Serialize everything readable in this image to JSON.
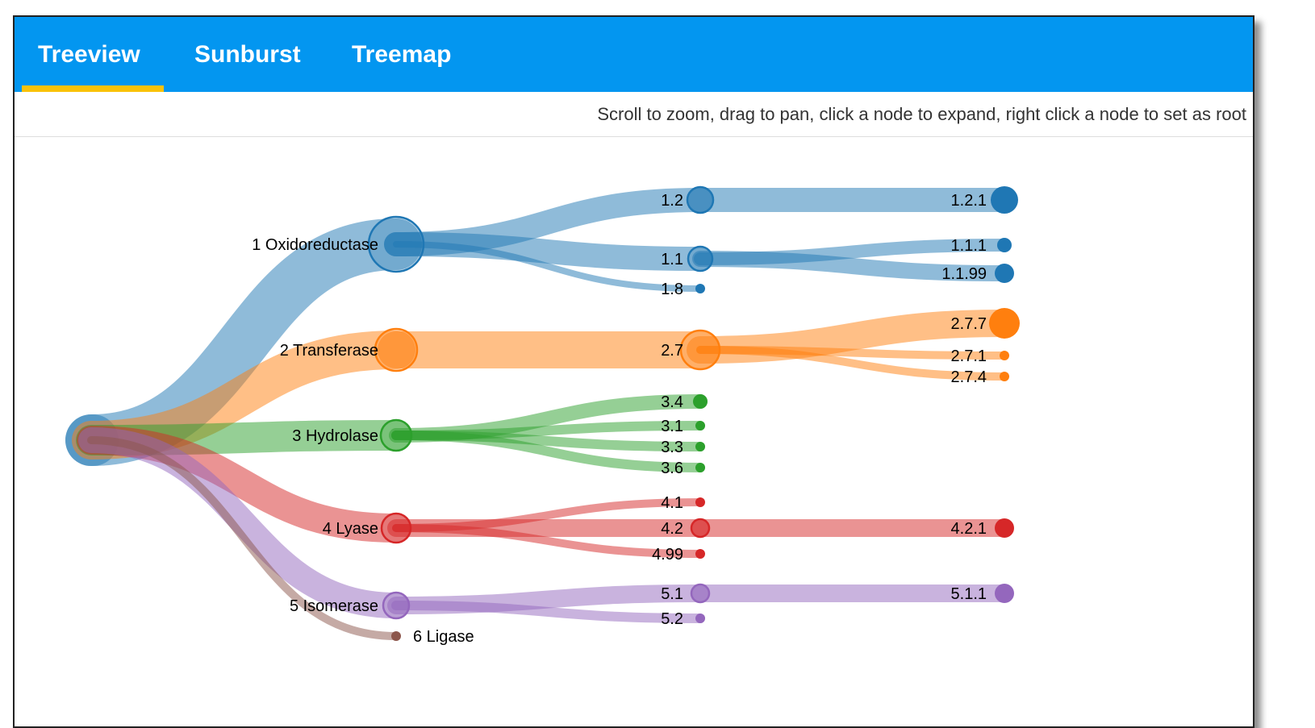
{
  "tabs": [
    {
      "label": "Treeview",
      "active": true
    },
    {
      "label": "Sunburst",
      "active": false
    },
    {
      "label": "Treemap",
      "active": false
    }
  ],
  "hint": "Scroll to zoom, drag to pan, click a node to expand, right click a node to set as root",
  "colors": {
    "tabbar": "#0396f0",
    "indicator": "#f9c20a",
    "blue": "#1f77b4",
    "orange": "#ff7f0e",
    "green": "#2ca02c",
    "red": "#d62728",
    "purple": "#9467bd",
    "brown": "#8c564b"
  },
  "tree": {
    "categories": [
      {
        "label": "1 Oxidoreductase",
        "color": "blue",
        "children": [
          "1.2",
          "1.1",
          "1.8"
        ]
      },
      {
        "label": "2 Transferase",
        "color": "orange",
        "children": [
          "2.7"
        ]
      },
      {
        "label": "3 Hydrolase",
        "color": "green",
        "children": [
          "3.4",
          "3.1",
          "3.3",
          "3.6"
        ]
      },
      {
        "label": "4 Lyase",
        "color": "red",
        "children": [
          "4.1",
          "4.2",
          "4.99"
        ]
      },
      {
        "label": "5 Isomerase",
        "color": "purple",
        "children": [
          "5.1",
          "5.2"
        ]
      },
      {
        "label": "6 Ligase",
        "color": "brown",
        "children": []
      }
    ],
    "subclasses": [
      {
        "label": "1.2",
        "color": "blue",
        "children": [
          "1.2.1"
        ]
      },
      {
        "label": "1.1",
        "color": "blue",
        "children": [
          "1.1.1",
          "1.1.99"
        ]
      },
      {
        "label": "1.8",
        "color": "blue",
        "children": []
      },
      {
        "label": "2.7",
        "color": "orange",
        "children": [
          "2.7.7",
          "2.7.1",
          "2.7.4"
        ]
      },
      {
        "label": "3.4",
        "color": "green",
        "children": []
      },
      {
        "label": "3.1",
        "color": "green",
        "children": []
      },
      {
        "label": "3.3",
        "color": "green",
        "children": []
      },
      {
        "label": "3.6",
        "color": "green",
        "children": []
      },
      {
        "label": "4.1",
        "color": "red",
        "children": []
      },
      {
        "label": "4.2",
        "color": "red",
        "children": [
          "4.2.1"
        ]
      },
      {
        "label": "4.99",
        "color": "red",
        "children": []
      },
      {
        "label": "5.1",
        "color": "purple",
        "children": [
          "5.1.1"
        ]
      },
      {
        "label": "5.2",
        "color": "purple",
        "children": []
      }
    ],
    "subsubclasses": [
      {
        "label": "1.2.1",
        "color": "blue"
      },
      {
        "label": "1.1.1",
        "color": "blue"
      },
      {
        "label": "1.1.99",
        "color": "blue"
      },
      {
        "label": "2.7.7",
        "color": "orange"
      },
      {
        "label": "2.7.1",
        "color": "orange"
      },
      {
        "label": "2.7.4",
        "color": "orange"
      },
      {
        "label": "4.2.1",
        "color": "red"
      },
      {
        "label": "5.1.1",
        "color": "purple"
      }
    ]
  }
}
